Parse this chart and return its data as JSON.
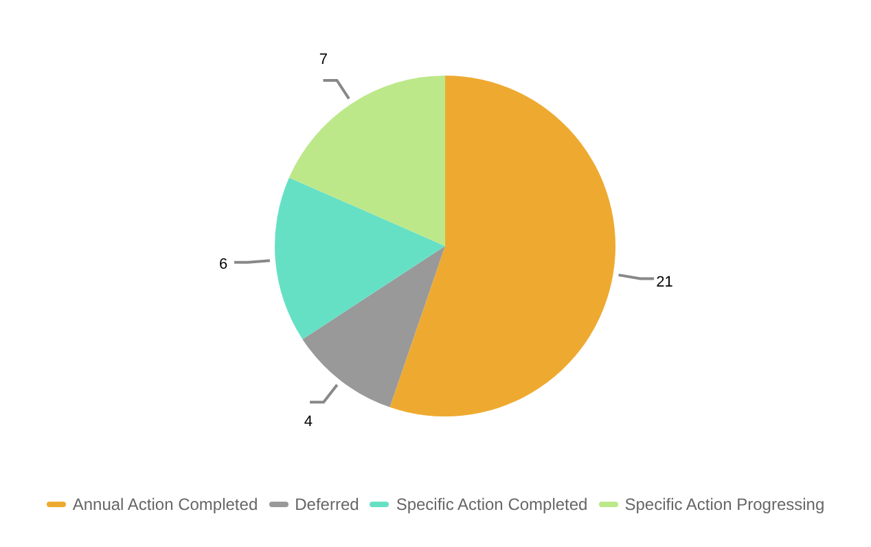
{
  "chart_data": {
    "type": "pie",
    "categories": [
      "Annual Action Completed",
      "Deferred",
      "Specific Action Completed",
      "Specific Action Progressing"
    ],
    "values": [
      21,
      4,
      6,
      7
    ],
    "colors": [
      "#eeaa30",
      "#999999",
      "#66e0c4",
      "#bce88a"
    ],
    "data_labels": true,
    "legend": "bottom"
  }
}
